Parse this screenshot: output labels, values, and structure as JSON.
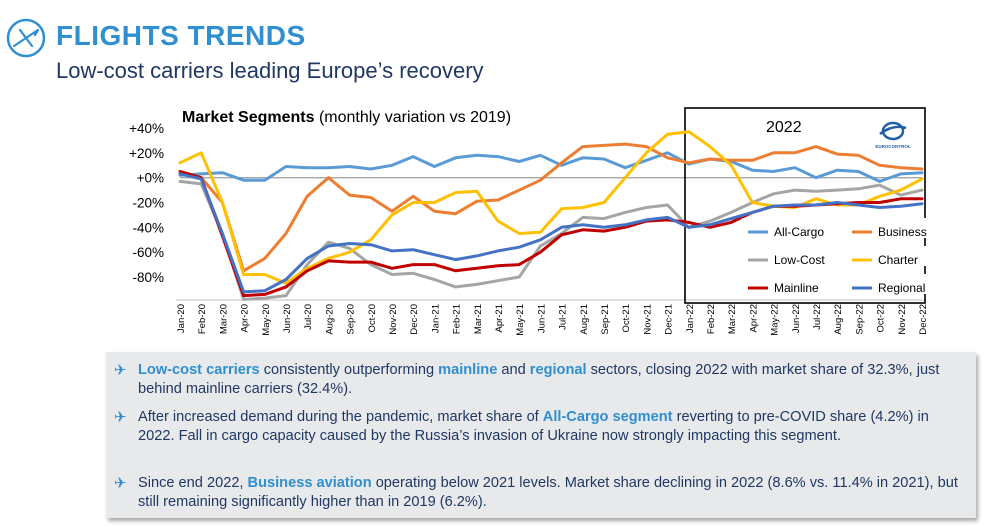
{
  "header": {
    "title": "FLIGHTS TRENDS",
    "subtitle": "Low-cost carriers leading Europe’s recovery",
    "logo_icon": "airplane-circle-icon"
  },
  "chart_data": {
    "type": "line",
    "title_bold": "Market Segments",
    "title_rest": "(monthly variation vs 2019)",
    "ylim": [
      -100,
      40
    ],
    "yticks": [
      "+40%",
      "+20%",
      "+0%",
      "-20%",
      "-40%",
      "-60%",
      "-80%"
    ],
    "ytick_values": [
      40,
      20,
      0,
      -20,
      -40,
      -60,
      -80
    ],
    "grid": false,
    "highlight_box_label": "2022",
    "brand_label": "EUROCONTROL",
    "categories": [
      "Jan-20",
      "Feb-20",
      "Mar-20",
      "Apr-20",
      "May-20",
      "Jun-20",
      "Jul-20",
      "Aug-20",
      "Sep-20",
      "Oct-20",
      "Nov-20",
      "Dec-20",
      "Jan-21",
      "Feb-21",
      "Mar-21",
      "Apr-21",
      "May-21",
      "Jun-21",
      "Jul-21",
      "Aug-21",
      "Sep-21",
      "Oct-21",
      "Nov-21",
      "Dec-21",
      "Jan-22",
      "Feb-22",
      "Mar-22",
      "Apr-22",
      "May-22",
      "Jun-22",
      "Jul-22",
      "Aug-22",
      "Sep-22",
      "Oct-22",
      "Nov-22",
      "Dec-22"
    ],
    "series": [
      {
        "name": "All-Cargo",
        "color": "#5b9bd5",
        "values": [
          2,
          3,
          4,
          -2,
          -2,
          9,
          8,
          8,
          9,
          7,
          10,
          17,
          9,
          16,
          18,
          17,
          13,
          18,
          10,
          16,
          15,
          8,
          14,
          20,
          11,
          15,
          13,
          6,
          5,
          8,
          0,
          6,
          5,
          -3,
          3,
          4
        ]
      },
      {
        "name": "Business",
        "color": "#ed7d31",
        "values": [
          5,
          0,
          -20,
          -75,
          -65,
          -45,
          -15,
          0,
          -14,
          -16,
          -27,
          -15,
          -27,
          -29,
          -19,
          -18,
          -10,
          -2,
          12,
          25,
          26,
          27,
          25,
          16,
          12,
          15,
          14,
          14,
          20,
          20,
          25,
          19,
          18,
          10,
          8,
          7
        ]
      },
      {
        "name": "Low-Cost",
        "color": "#a5a5a5",
        "values": [
          -3,
          -5,
          -45,
          -98,
          -97,
          -95,
          -70,
          -52,
          -57,
          -70,
          -78,
          -77,
          -82,
          -88,
          -86,
          -83,
          -80,
          -55,
          -45,
          -32,
          -33,
          -28,
          -24,
          -22,
          -40,
          -35,
          -28,
          -20,
          -13,
          -10,
          -11,
          -10,
          -9,
          -6,
          -14,
          -10
        ]
      },
      {
        "name": "Charter",
        "color": "#ffc000",
        "values": [
          12,
          20,
          -20,
          -78,
          -78,
          -85,
          -73,
          -65,
          -60,
          -50,
          -30,
          -20,
          -20,
          -12,
          -11,
          -35,
          -45,
          -44,
          -25,
          -24,
          -20,
          0,
          20,
          35,
          37,
          25,
          10,
          -20,
          -23,
          -24,
          -17,
          -22,
          -22,
          -15,
          -10,
          -1
        ]
      },
      {
        "name": "Mainline",
        "color": "#c00000",
        "values": [
          5,
          0,
          -47,
          -95,
          -94,
          -88,
          -75,
          -67,
          -68,
          -68,
          -73,
          -70,
          -70,
          -75,
          -73,
          -71,
          -70,
          -60,
          -46,
          -42,
          -43,
          -40,
          -35,
          -34,
          -36,
          -40,
          -36,
          -28,
          -23,
          -23,
          -22,
          -21,
          -20,
          -20,
          -17,
          -17
        ]
      },
      {
        "name": "Regional",
        "color": "#4472c4",
        "values": [
          3,
          -1,
          -45,
          -92,
          -91,
          -82,
          -65,
          -55,
          -53,
          -54,
          -59,
          -58,
          -62,
          -66,
          -63,
          -59,
          -56,
          -50,
          -40,
          -38,
          -40,
          -38,
          -34,
          -32,
          -40,
          -38,
          -33,
          -28,
          -23,
          -22,
          -22,
          -20,
          -22,
          -24,
          -23,
          -21
        ]
      }
    ]
  },
  "bullets": {
    "b1_p1": "Low-cost carriers",
    "b1_p2": " consistently outperforming ",
    "b1_p3": "mainline",
    "b1_p4": " and ",
    "b1_p5": "regional",
    "b1_p6": " sectors, closing 2022 with market share of 32.3%, just behind mainline carriers (32.4%).",
    "b2_p1": "After increased demand during the pandemic, market share of ",
    "b2_p2": "All-Cargo segment",
    "b2_p3": " reverting to pre-COVID share (4.2%) in 2022. Fall in cargo capacity caused by the Russia’s invasion of Ukraine now strongly impacting this segment.",
    "b3_p1": "Since end 2022, ",
    "b3_p2": "Business aviation",
    "b3_p3": " operating below 2021 levels. Market share declining in 2022 (8.6% vs. 11.4% in 2021), but still remaining significantly higher than in 2019 (6.2%).",
    "plane_glyph": "✈"
  }
}
